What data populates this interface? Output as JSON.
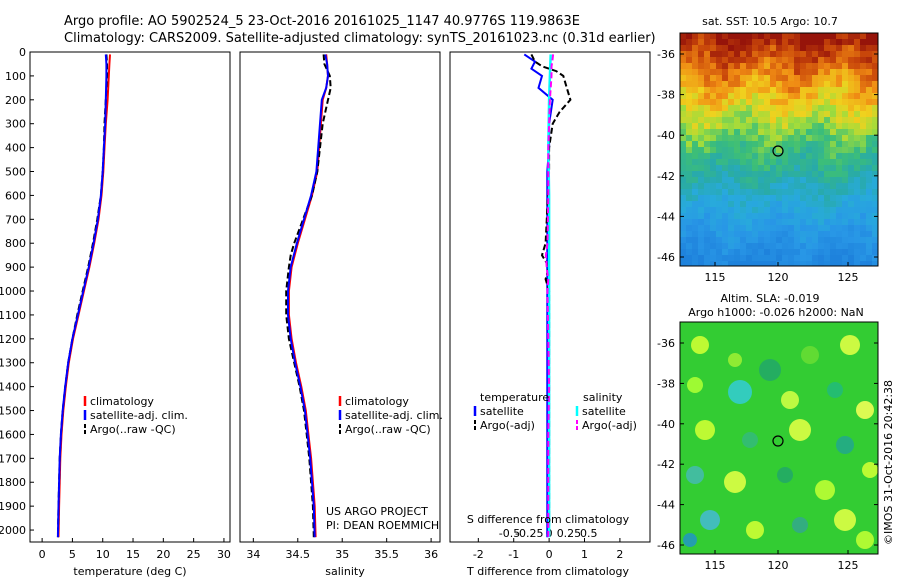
{
  "header": {
    "line1": "Argo profile: AO 5902524_5 23-Oct-2016 20161025_1147 40.9776S 119.9863E",
    "line2": "Climatology: CARS2009. Satellite-adjusted climatology: synTS_20161023.nc (0.31d earlier)"
  },
  "colors": {
    "climatology": "#ff0000",
    "satellite": "#0000ff",
    "argo": "#000000",
    "sal_satellite": "#00ffff",
    "sal_argo": "#ff00ff"
  },
  "chart_data": [
    {
      "type": "line",
      "name": "temperature-panel",
      "xlabel": "temperature (deg C)",
      "xlim": [
        -2,
        31
      ],
      "xticks": [
        "0",
        "5",
        "10",
        "15",
        "20",
        "25",
        "30"
      ],
      "xtick_values": [
        0,
        5,
        10,
        15,
        20,
        25,
        30
      ],
      "ylim": [
        2050,
        0
      ],
      "yticks": [
        "0",
        "100",
        "200",
        "300",
        "400",
        "500",
        "600",
        "700",
        "800",
        "900",
        "1000",
        "1100",
        "1200",
        "1300",
        "1400",
        "1500",
        "1600",
        "1700",
        "1800",
        "1900",
        "2000"
      ],
      "ytick_values": [
        0,
        100,
        200,
        300,
        400,
        500,
        600,
        700,
        800,
        900,
        1000,
        1100,
        1200,
        1300,
        1400,
        1500,
        1600,
        1700,
        1800,
        1900,
        2000
      ],
      "legend": [
        "climatology",
        "satellite-adj. clim.",
        "Argo(..raw -QC)"
      ],
      "series": [
        {
          "name": "climatology",
          "color": "#ff0000",
          "depth": [
            10,
            50,
            100,
            200,
            300,
            400,
            500,
            600,
            700,
            800,
            900,
            1000,
            1100,
            1200,
            1300,
            1400,
            1500,
            1600,
            1700,
            1800,
            1900,
            2030
          ],
          "values": [
            11.2,
            11.1,
            11.0,
            10.8,
            10.5,
            10.3,
            10.1,
            9.8,
            9.3,
            8.6,
            7.8,
            6.9,
            6.0,
            5.1,
            4.4,
            3.9,
            3.5,
            3.2,
            3.0,
            2.9,
            2.8,
            2.7
          ]
        },
        {
          "name": "satellite-adj. clim.",
          "color": "#0000ff",
          "depth": [
            10,
            50,
            100,
            200,
            300,
            400,
            500,
            600,
            700,
            800,
            900,
            1000,
            1100,
            1200,
            1300,
            1400,
            1500,
            1600,
            1700,
            1800,
            1900,
            2030
          ],
          "values": [
            10.5,
            10.6,
            10.6,
            10.5,
            10.4,
            10.2,
            10.0,
            9.7,
            9.2,
            8.5,
            7.7,
            6.8,
            5.9,
            5.0,
            4.3,
            3.8,
            3.4,
            3.1,
            2.9,
            2.8,
            2.7,
            2.6
          ]
        },
        {
          "name": "Argo(..raw -QC)",
          "color": "#000000",
          "depth": [
            10,
            50,
            100,
            200,
            300,
            400,
            500,
            600,
            700,
            800,
            900,
            1000,
            1100,
            1200,
            1300,
            1400,
            1500,
            1600,
            1700,
            1800,
            1900,
            2030
          ],
          "values": [
            10.6,
            10.7,
            10.7,
            10.5,
            10.3,
            10.2,
            10.0,
            9.7,
            9.1,
            8.4,
            7.6,
            6.7,
            5.8,
            5.0,
            4.3,
            3.8,
            3.4,
            3.1,
            2.9,
            2.8,
            2.7,
            2.6
          ]
        }
      ]
    },
    {
      "type": "line",
      "name": "salinity-panel",
      "xlabel": "salinity",
      "xlim": [
        33.85,
        36.1
      ],
      "xticks": [
        "34",
        "34.5",
        "35",
        "35.5",
        "36"
      ],
      "xtick_values": [
        34,
        34.5,
        35,
        35.5,
        36
      ],
      "ylim": [
        2050,
        0
      ],
      "legend": [
        "climatology",
        "satellite-adj. clim.",
        "Argo(..raw -QC)"
      ],
      "annotation": [
        "US ARGO PROJECT",
        "PI: DEAN ROEMMICH"
      ],
      "series": [
        {
          "name": "climatology",
          "color": "#ff0000",
          "depth": [
            10,
            50,
            100,
            150,
            200,
            300,
            400,
            500,
            600,
            700,
            800,
            900,
            1000,
            1100,
            1200,
            1300,
            1400,
            1500,
            1600,
            1700,
            1800,
            1900,
            2030
          ],
          "values": [
            34.82,
            34.83,
            34.84,
            34.82,
            34.78,
            34.76,
            34.74,
            34.72,
            34.66,
            34.58,
            34.5,
            34.43,
            34.4,
            34.4,
            34.43,
            34.48,
            34.54,
            34.59,
            34.62,
            34.65,
            34.67,
            34.69,
            34.7
          ]
        },
        {
          "name": "satellite-adj. clim.",
          "color": "#0000ff",
          "depth": [
            10,
            50,
            100,
            150,
            200,
            300,
            400,
            500,
            600,
            700,
            800,
            900,
            1000,
            1100,
            1200,
            1300,
            1400,
            1500,
            1600,
            1700,
            1800,
            1900,
            2030
          ],
          "values": [
            34.81,
            34.83,
            34.84,
            34.82,
            34.77,
            34.75,
            34.73,
            34.71,
            34.65,
            34.57,
            34.49,
            34.42,
            34.39,
            34.39,
            34.42,
            34.47,
            34.53,
            34.58,
            34.61,
            34.64,
            34.66,
            34.68,
            34.69
          ]
        },
        {
          "name": "Argo(..raw -QC)",
          "color": "#000000",
          "depth": [
            10,
            50,
            100,
            150,
            200,
            300,
            400,
            500,
            600,
            700,
            800,
            850,
            900,
            1000,
            1100,
            1200,
            1300,
            1400,
            1500,
            1600,
            1700,
            1800,
            1900,
            2030
          ],
          "values": [
            34.79,
            34.8,
            34.86,
            34.87,
            34.84,
            34.78,
            34.75,
            34.72,
            34.66,
            34.56,
            34.46,
            34.42,
            34.4,
            34.37,
            34.37,
            34.4,
            34.46,
            34.52,
            34.57,
            34.6,
            34.63,
            34.65,
            34.67,
            34.68
          ]
        }
      ]
    },
    {
      "type": "line",
      "name": "difference-panel",
      "xlabel": "T difference from climatology",
      "top_label": "S difference from climatology",
      "xlim": [
        -2.8,
        2.85
      ],
      "xticks": [
        "-2",
        "-1",
        "0",
        "1",
        "2"
      ],
      "xtick_values": [
        -2,
        -1,
        0,
        1,
        2
      ],
      "sticks": [
        "-0.5",
        "-0.25",
        "0",
        "0.25",
        "0.5"
      ],
      "stick_values": [
        -0.5,
        -0.25,
        0,
        0.25,
        0.5
      ],
      "ylim": [
        2050,
        0
      ],
      "legend_t_title": "temperature",
      "legend_s_title": "salinity",
      "legend_t": [
        "satellite",
        "Argo(-adj)"
      ],
      "legend_s": [
        "satellite",
        "Argo(-adj)"
      ],
      "series": [
        {
          "name": "T satellite",
          "color": "#0000ff",
          "depth": [
            10,
            40,
            70,
            100,
            150,
            200,
            300,
            400,
            500,
            2030
          ],
          "values": [
            -0.7,
            -0.4,
            -0.5,
            -0.2,
            -0.3,
            0.1,
            0.0,
            0.0,
            -0.05,
            -0.05
          ]
        },
        {
          "name": "T Argo",
          "color": "#000000",
          "depth": [
            10,
            40,
            60,
            80,
            100,
            150,
            200,
            250,
            300,
            400,
            500,
            800,
            850,
            900,
            950,
            1000,
            2030
          ],
          "values": [
            -0.5,
            -0.4,
            -0.2,
            0.2,
            0.4,
            0.5,
            0.6,
            0.3,
            0.1,
            0.0,
            0.0,
            -0.1,
            -0.2,
            0.0,
            -0.1,
            0.0,
            0.0
          ]
        },
        {
          "name": "S satellite",
          "color": "#00ffff",
          "depth": [
            10,
            100,
            200,
            400,
            600,
            800,
            1000,
            1200,
            1400,
            1600,
            1800,
            2030
          ],
          "values": [
            0.02,
            0.01,
            0.0,
            -0.01,
            0.0,
            0.0,
            0.0,
            0.0,
            0.0,
            0.0,
            0.0,
            0.0
          ]
        },
        {
          "name": "S Argo",
          "color": "#ff00ff",
          "depth": [
            10,
            40,
            60,
            100,
            150,
            200,
            400,
            600,
            800,
            850,
            900,
            950,
            1000,
            1200,
            1400,
            1600,
            1800,
            2030
          ],
          "values": [
            0.05,
            0.04,
            0.03,
            0.03,
            0.02,
            0.01,
            -0.01,
            -0.01,
            -0.02,
            -0.04,
            -0.03,
            -0.01,
            -0.02,
            -0.01,
            0.0,
            -0.01,
            -0.01,
            -0.01
          ]
        }
      ]
    }
  ],
  "maps": {
    "top": {
      "title": "sat. SST: 10.5 Argo: 10.7",
      "xticks": [
        "115",
        "120",
        "125"
      ],
      "yticks": [
        "-36",
        "-38",
        "-40",
        "-42",
        "-44",
        "-46"
      ]
    },
    "bottom": {
      "title1": "Altim. SLA: -0.019",
      "title2": "Argo h1000: -0.026 h2000: NaN",
      "xticks": [
        "115",
        "120",
        "125"
      ],
      "yticks": [
        "-36",
        "-38",
        "-40",
        "-42",
        "-44",
        "-46"
      ]
    },
    "credit": "©IMOS 31-Oct-2016 20:42:38"
  }
}
